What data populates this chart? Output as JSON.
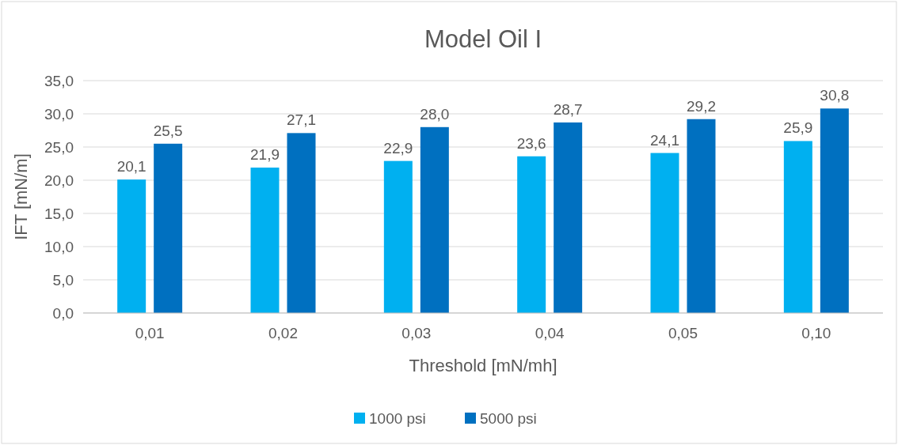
{
  "chart_data": {
    "type": "bar",
    "title": "Model Oil I",
    "xlabel": "Threshold [mN/mh]",
    "ylabel": "IFT [mN/m]",
    "categories": [
      "0,01",
      "0,02",
      "0,03",
      "0,04",
      "0,05",
      "0,10"
    ],
    "series": [
      {
        "name": "1000 psi",
        "color": "#00b0f0",
        "values": [
          20.1,
          21.9,
          22.9,
          23.6,
          24.1,
          25.9
        ],
        "value_labels": [
          "20,1",
          "21,9",
          "22,9",
          "23,6",
          "24,1",
          "25,9"
        ]
      },
      {
        "name": "5000 psi",
        "color": "#0070c0",
        "values": [
          25.5,
          27.1,
          28.0,
          28.7,
          29.2,
          30.8
        ],
        "value_labels": [
          "25,5",
          "27,1",
          "28,0",
          "28,7",
          "29,2",
          "30,8"
        ]
      }
    ],
    "ylim": [
      0,
      35
    ],
    "yticks": [
      {
        "value": 0,
        "label": "0,0"
      },
      {
        "value": 5,
        "label": "5,0"
      },
      {
        "value": 10,
        "label": "10,0"
      },
      {
        "value": 15,
        "label": "15,0"
      },
      {
        "value": 20,
        "label": "20,0"
      },
      {
        "value": 25,
        "label": "25,0"
      },
      {
        "value": 30,
        "label": "30,0"
      },
      {
        "value": 35,
        "label": "35,0"
      }
    ],
    "grid": "y",
    "legend": "bottom"
  }
}
